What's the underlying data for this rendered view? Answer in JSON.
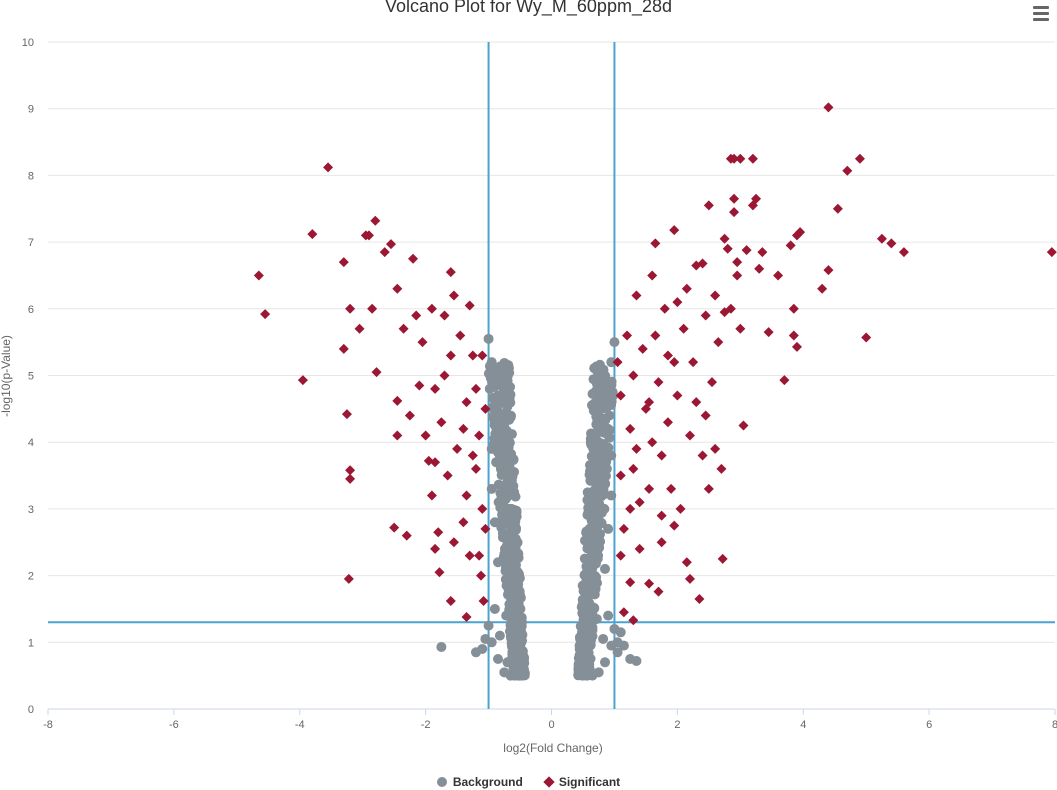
{
  "chart": {
    "title": "Volcano Plot for Wy_M_60ppm_28d",
    "menu_icon": "hamburger-menu-icon"
  },
  "colors": {
    "background_series": "#858f97",
    "significant_series": "#9b1733",
    "threshold_lines": "#4aa3d0",
    "grid": "#e6e6e6"
  },
  "legend": {
    "background_label": "Background",
    "significant_label": "Significant"
  },
  "chart_data": {
    "type": "scatter",
    "title": "Volcano Plot for Wy_M_60ppm_28d",
    "xlabel": "log2(Fold Change)",
    "ylabel": "-log10(p-Value)",
    "xlim": [
      -8,
      8
    ],
    "ylim": [
      0,
      10
    ],
    "x_ticks": [
      -8,
      -6,
      -4,
      -2,
      0,
      2,
      4,
      6,
      8
    ],
    "y_ticks": [
      0,
      1,
      2,
      3,
      4,
      5,
      6,
      7,
      8,
      9,
      10
    ],
    "grid": true,
    "legend_position": "bottom-center",
    "thresholds": {
      "log2fc": [
        -1,
        1
      ],
      "neg_log10_p": 1.3
    },
    "series": [
      {
        "name": "Background",
        "marker": "circle",
        "points": [
          [
            -1.0,
            5.55
          ],
          [
            -0.95,
            5.2
          ],
          [
            -0.9,
            4.95
          ],
          [
            -0.85,
            4.7
          ],
          [
            -0.8,
            4.6
          ],
          [
            -0.78,
            4.4
          ],
          [
            -0.75,
            4.1
          ],
          [
            -0.72,
            3.8
          ],
          [
            -0.7,
            3.5
          ],
          [
            -0.68,
            3.2
          ],
          [
            -0.66,
            3.0
          ],
          [
            -0.64,
            2.7
          ],
          [
            -0.62,
            2.5
          ],
          [
            -0.6,
            2.2
          ],
          [
            -0.58,
            2.0
          ],
          [
            -0.56,
            1.8
          ],
          [
            -0.54,
            1.6
          ],
          [
            -0.52,
            1.4
          ],
          [
            -0.5,
            1.2
          ],
          [
            -0.48,
            1.0
          ],
          [
            -0.5,
            0.8
          ],
          [
            -0.55,
            0.6
          ],
          [
            -0.65,
            0.5
          ],
          [
            -0.75,
            0.55
          ],
          [
            -0.85,
            0.75
          ],
          [
            -0.95,
            1.0
          ],
          [
            -1.0,
            1.25
          ],
          [
            -1.05,
            1.05
          ],
          [
            -0.9,
            1.5
          ],
          [
            -0.85,
            2.2
          ],
          [
            -0.9,
            2.8
          ],
          [
            -0.95,
            3.3
          ],
          [
            -0.95,
            3.9
          ],
          [
            -0.9,
            4.3
          ],
          [
            -0.8,
            3.6
          ],
          [
            -0.78,
            2.9
          ],
          [
            -0.74,
            2.4
          ],
          [
            -0.7,
            1.9
          ],
          [
            -0.72,
            1.4
          ],
          [
            -0.82,
            1.1
          ],
          [
            -0.6,
            1.1
          ],
          [
            -0.62,
            1.6
          ],
          [
            -0.66,
            2.1
          ],
          [
            -0.84,
            3.1
          ],
          [
            -0.88,
            3.7
          ],
          [
            -0.92,
            4.5
          ],
          [
            -0.98,
            4.8
          ],
          [
            -0.76,
            4.75
          ],
          [
            -1.1,
            0.9
          ],
          [
            -1.2,
            0.85
          ],
          [
            -1.75,
            0.93
          ],
          [
            -0.6,
            0.6
          ],
          [
            -0.7,
            0.7
          ],
          [
            1.0,
            5.5
          ],
          [
            0.95,
            5.2
          ],
          [
            0.9,
            4.9
          ],
          [
            0.85,
            4.65
          ],
          [
            0.8,
            4.5
          ],
          [
            0.78,
            4.3
          ],
          [
            0.75,
            4.0
          ],
          [
            0.72,
            3.7
          ],
          [
            0.7,
            3.4
          ],
          [
            0.68,
            3.1
          ],
          [
            0.66,
            2.9
          ],
          [
            0.64,
            2.6
          ],
          [
            0.62,
            2.4
          ],
          [
            0.6,
            2.1
          ],
          [
            0.58,
            1.9
          ],
          [
            0.56,
            1.7
          ],
          [
            0.54,
            1.5
          ],
          [
            0.52,
            1.3
          ],
          [
            0.5,
            1.1
          ],
          [
            0.48,
            0.95
          ],
          [
            0.5,
            0.8
          ],
          [
            0.55,
            0.65
          ],
          [
            0.65,
            0.5
          ],
          [
            0.75,
            0.55
          ],
          [
            0.85,
            0.7
          ],
          [
            0.95,
            0.95
          ],
          [
            1.0,
            1.2
          ],
          [
            1.05,
            1.0
          ],
          [
            0.9,
            1.4
          ],
          [
            0.85,
            2.1
          ],
          [
            0.9,
            2.7
          ],
          [
            0.95,
            3.2
          ],
          [
            0.95,
            3.8
          ],
          [
            0.9,
            4.2
          ],
          [
            0.8,
            3.5
          ],
          [
            0.78,
            2.8
          ],
          [
            0.74,
            2.3
          ],
          [
            0.7,
            1.8
          ],
          [
            0.72,
            1.35
          ],
          [
            0.82,
            1.05
          ],
          [
            0.6,
            1.05
          ],
          [
            0.62,
            1.55
          ],
          [
            0.66,
            2.0
          ],
          [
            0.84,
            3.0
          ],
          [
            0.88,
            3.6
          ],
          [
            0.92,
            4.4
          ],
          [
            0.98,
            4.7
          ],
          [
            0.76,
            4.6
          ],
          [
            1.05,
            0.85
          ],
          [
            1.25,
            0.75
          ],
          [
            1.35,
            0.72
          ],
          [
            1.1,
            1.15
          ],
          [
            1.15,
            0.95
          ],
          [
            0.6,
            0.6
          ]
        ]
      },
      {
        "name": "Significant",
        "marker": "diamond",
        "points": [
          [
            -4.65,
            6.5
          ],
          [
            -4.55,
            5.92
          ],
          [
            -3.95,
            4.93
          ],
          [
            -3.8,
            7.12
          ],
          [
            -3.55,
            8.12
          ],
          [
            -3.3,
            6.7
          ],
          [
            -3.3,
            5.4
          ],
          [
            -3.25,
            4.42
          ],
          [
            -3.2,
            3.58
          ],
          [
            -3.2,
            3.45
          ],
          [
            -3.22,
            1.95
          ],
          [
            -3.2,
            6.0
          ],
          [
            -3.05,
            5.7
          ],
          [
            -2.95,
            7.1
          ],
          [
            -2.9,
            7.1
          ],
          [
            -2.85,
            6.0
          ],
          [
            -2.8,
            7.32
          ],
          [
            -2.78,
            5.05
          ],
          [
            -2.65,
            6.85
          ],
          [
            -2.55,
            6.97
          ],
          [
            -2.45,
            6.3
          ],
          [
            -2.45,
            4.62
          ],
          [
            -2.45,
            4.1
          ],
          [
            -2.5,
            2.72
          ],
          [
            -2.35,
            5.7
          ],
          [
            -2.3,
            2.6
          ],
          [
            -2.25,
            4.4
          ],
          [
            -2.2,
            6.75
          ],
          [
            -2.15,
            5.9
          ],
          [
            -2.05,
            5.5
          ],
          [
            -2.0,
            4.1
          ],
          [
            -1.95,
            3.72
          ],
          [
            -1.9,
            6.0
          ],
          [
            -1.85,
            4.8
          ],
          [
            -1.85,
            3.7
          ],
          [
            -1.8,
            2.65
          ],
          [
            -1.85,
            2.4
          ],
          [
            -1.78,
            2.05
          ],
          [
            -1.7,
            5.9
          ],
          [
            -1.7,
            5.0
          ],
          [
            -1.75,
            4.3
          ],
          [
            -1.65,
            3.5
          ],
          [
            -1.6,
            6.55
          ],
          [
            -1.55,
            6.2
          ],
          [
            -1.6,
            1.62
          ],
          [
            -1.5,
            3.9
          ],
          [
            -1.45,
            5.6
          ],
          [
            -1.4,
            2.8
          ],
          [
            -1.35,
            4.6
          ],
          [
            -1.35,
            3.2
          ],
          [
            -1.35,
            1.38
          ],
          [
            -1.3,
            6.05
          ],
          [
            -1.25,
            5.3
          ],
          [
            -1.3,
            2.3
          ],
          [
            -1.2,
            4.8
          ],
          [
            -1.2,
            3.6
          ],
          [
            -1.15,
            4.1
          ],
          [
            -1.12,
            2.0
          ],
          [
            -1.1,
            5.3
          ],
          [
            -1.1,
            3.0
          ],
          [
            -1.05,
            4.5
          ],
          [
            -1.05,
            2.7
          ],
          [
            -1.08,
            1.62
          ],
          [
            -1.6,
            5.3
          ],
          [
            -1.4,
            4.2
          ],
          [
            -1.25,
            3.8
          ],
          [
            -1.55,
            2.5
          ],
          [
            -1.15,
            2.3
          ],
          [
            -1.9,
            3.2
          ],
          [
            -2.1,
            4.85
          ],
          [
            1.05,
            5.2
          ],
          [
            1.1,
            4.7
          ],
          [
            1.1,
            3.5
          ],
          [
            1.15,
            2.7
          ],
          [
            1.1,
            2.3
          ],
          [
            1.15,
            1.45
          ],
          [
            1.2,
            5.6
          ],
          [
            1.25,
            4.2
          ],
          [
            1.25,
            3.0
          ],
          [
            1.25,
            1.9
          ],
          [
            1.3,
            1.33
          ],
          [
            1.3,
            5.0
          ],
          [
            1.35,
            6.2
          ],
          [
            1.35,
            3.9
          ],
          [
            1.4,
            2.4
          ],
          [
            1.45,
            5.4
          ],
          [
            1.5,
            4.5
          ],
          [
            1.55,
            3.3
          ],
          [
            1.55,
            1.88
          ],
          [
            1.6,
            6.5
          ],
          [
            1.65,
            6.98
          ],
          [
            1.65,
            5.6
          ],
          [
            1.7,
            4.9
          ],
          [
            1.7,
            1.76
          ],
          [
            1.75,
            3.8
          ],
          [
            1.75,
            2.5
          ],
          [
            1.8,
            6.0
          ],
          [
            1.85,
            4.3
          ],
          [
            1.9,
            3.3
          ],
          [
            1.95,
            5.2
          ],
          [
            1.95,
            7.18
          ],
          [
            2.0,
            4.7
          ],
          [
            2.05,
            3.0
          ],
          [
            2.1,
            5.7
          ],
          [
            2.15,
            6.3
          ],
          [
            2.15,
            2.2
          ],
          [
            2.2,
            4.1
          ],
          [
            2.2,
            1.95
          ],
          [
            2.25,
            5.2
          ],
          [
            2.3,
            6.65
          ],
          [
            2.3,
            4.6
          ],
          [
            2.35,
            1.65
          ],
          [
            2.4,
            3.8
          ],
          [
            2.4,
            6.68
          ],
          [
            2.45,
            5.9
          ],
          [
            2.5,
            7.55
          ],
          [
            2.5,
            3.3
          ],
          [
            2.55,
            4.9
          ],
          [
            2.6,
            6.2
          ],
          [
            2.65,
            5.5
          ],
          [
            2.7,
            3.6
          ],
          [
            2.72,
            2.25
          ],
          [
            2.75,
            7.05
          ],
          [
            2.8,
            6.9
          ],
          [
            2.85,
            6.0
          ],
          [
            2.85,
            8.25
          ],
          [
            2.9,
            8.25
          ],
          [
            2.9,
            7.65
          ],
          [
            2.9,
            7.45
          ],
          [
            2.95,
            6.7
          ],
          [
            3.0,
            5.7
          ],
          [
            3.0,
            8.25
          ],
          [
            3.05,
            4.25
          ],
          [
            3.1,
            6.88
          ],
          [
            3.2,
            7.55
          ],
          [
            3.2,
            8.25
          ],
          [
            3.25,
            7.65
          ],
          [
            3.3,
            6.6
          ],
          [
            3.35,
            6.85
          ],
          [
            3.45,
            5.65
          ],
          [
            3.7,
            4.93
          ],
          [
            3.8,
            6.95
          ],
          [
            3.85,
            6.0
          ],
          [
            3.85,
            5.6
          ],
          [
            3.9,
            7.1
          ],
          [
            3.95,
            7.15
          ],
          [
            4.3,
            6.3
          ],
          [
            4.4,
            9.02
          ],
          [
            4.4,
            6.58
          ],
          [
            4.55,
            7.5
          ],
          [
            4.7,
            8.07
          ],
          [
            4.9,
            8.25
          ],
          [
            5.0,
            5.57
          ],
          [
            5.25,
            7.05
          ],
          [
            5.4,
            6.98
          ],
          [
            5.6,
            6.85
          ],
          [
            7.95,
            6.85
          ],
          [
            3.9,
            5.43
          ],
          [
            2.75,
            5.95
          ],
          [
            2.95,
            6.5
          ],
          [
            3.6,
            6.5
          ],
          [
            2.0,
            6.1
          ],
          [
            1.85,
            5.3
          ],
          [
            1.55,
            4.6
          ],
          [
            1.3,
            3.6
          ],
          [
            1.4,
            3.1
          ],
          [
            1.6,
            4.0
          ],
          [
            1.75,
            2.9
          ],
          [
            2.6,
            3.9
          ],
          [
            2.45,
            4.4
          ],
          [
            1.95,
            2.75
          ]
        ]
      }
    ]
  }
}
